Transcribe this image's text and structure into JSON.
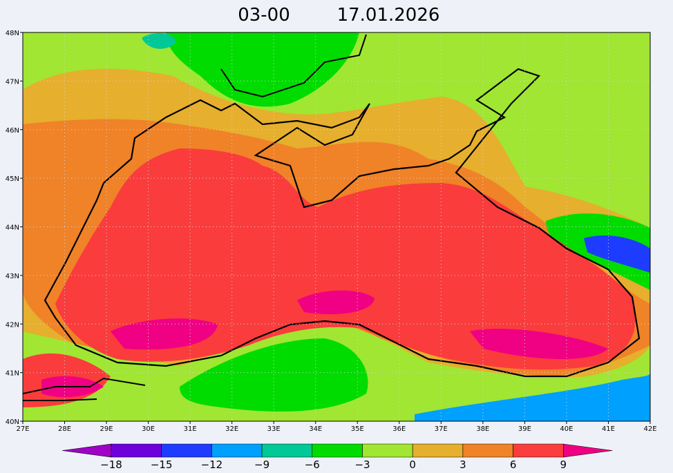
{
  "header": {
    "time": "03-00",
    "date": "17.01.2026"
  },
  "map": {
    "lon_labels": [
      "27E",
      "28E",
      "29E",
      "30E",
      "31E",
      "32E",
      "33E",
      "34E",
      "35E",
      "36E",
      "37E",
      "38E",
      "39E",
      "40E",
      "41E",
      "42E"
    ],
    "lat_labels": [
      "48N",
      "47N",
      "46N",
      "45N",
      "44N",
      "43N",
      "42N",
      "41N",
      "40N"
    ]
  },
  "colorbar": {
    "labels": [
      "−18",
      "−15",
      "−12",
      "−9",
      "−6",
      "−3",
      "0",
      "3",
      "6",
      "9"
    ],
    "colors": [
      "#a000c8",
      "#6e00dc",
      "#1e3cff",
      "#00a0ff",
      "#00c896",
      "#00dc00",
      "#a0e632",
      "#e6af2d",
      "#f08228",
      "#fa3c3c",
      "#f00082"
    ]
  }
}
